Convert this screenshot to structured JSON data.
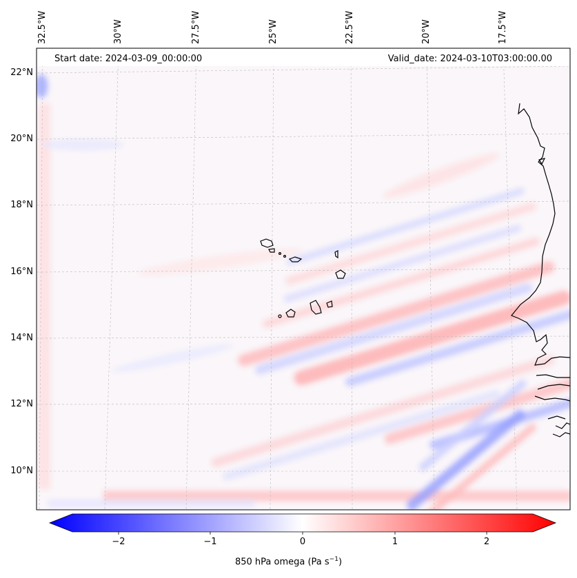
{
  "map": {
    "start_date": "Start date: 2024-03-09_00:00:00",
    "valid_date": "Valid_date: 2024-03-10T03:00:00.00",
    "lon_labels": [
      "32.5°W",
      "30°W",
      "27.5°W",
      "25°W",
      "22.5°W",
      "20°W",
      "17.5°W"
    ],
    "lat_labels": [
      "22°N",
      "20°N",
      "18°N",
      "16°N",
      "14°N",
      "12°N",
      "10°N"
    ],
    "extent": {
      "lon": [
        -32.7,
        -15.4
      ],
      "lat": [
        8.9,
        22.8
      ]
    },
    "colorbar": {
      "label": "850 hPa omega (Pa s",
      "label_sup": "−1",
      "label_end": ")",
      "ticks": [
        "−2",
        "−1",
        "0",
        "1",
        "2"
      ],
      "range": [
        -2.6,
        2.6
      ],
      "colors": {
        "negative": "#0000ff",
        "zero": "#ffffff",
        "positive": "#ff0000"
      }
    }
  }
}
